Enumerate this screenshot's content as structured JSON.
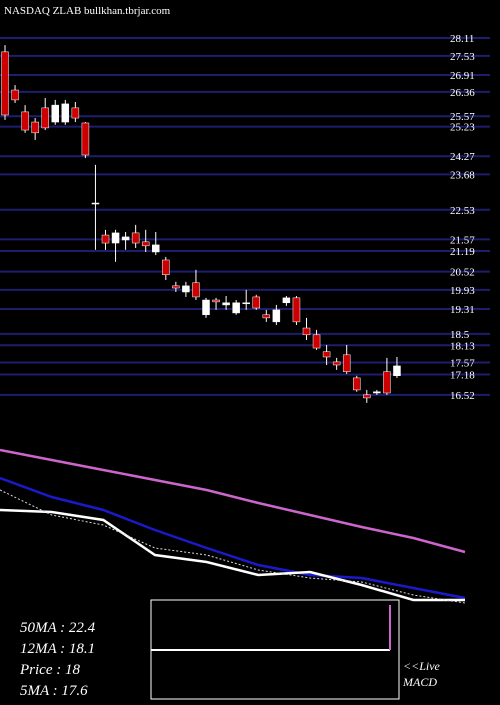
{
  "chart_data": [
    {
      "type": "candlestick",
      "title": "NASDAQ ZLAB bullkhan.tbrjar.com",
      "ylim": [
        16.19,
        28.11
      ],
      "yticks": [
        28.11,
        27.53,
        26.91,
        26.36,
        25.57,
        25.23,
        24.27,
        23.68,
        22.53,
        21.57,
        21.19,
        20.52,
        19.93,
        19.31,
        18.5,
        18.13,
        17.57,
        17.18,
        16.52
      ],
      "grid": true,
      "grid_color": "#1e1e6e",
      "up_color": "#ffffff",
      "down_color": "#cc0000",
      "open": [
        27.66,
        26.42,
        25.71,
        25.38,
        25.84,
        25.38,
        25.38,
        25.84,
        25.35,
        22.75,
        21.71,
        21.45,
        21.55,
        21.78,
        21.49,
        21.16,
        20.9,
        20.06,
        19.86,
        20.16,
        19.12,
        19.6,
        19.44,
        19.18,
        19.51,
        19.7,
        19.12,
        18.89,
        19.51,
        19.67,
        18.69,
        18.47,
        17.92,
        17.59,
        17.82,
        17.07,
        16.52,
        16.58,
        17.27,
        17.14
      ],
      "high": [
        27.88,
        26.58,
        25.93,
        25.51,
        26.16,
        26.1,
        26.1,
        26.03,
        25.38,
        23.99,
        21.88,
        21.88,
        21.81,
        22.04,
        21.88,
        21.81,
        21.0,
        20.19,
        20.19,
        20.58,
        19.67,
        19.67,
        19.73,
        19.6,
        19.93,
        19.77,
        19.28,
        19.44,
        19.73,
        19.73,
        19.02,
        18.63,
        18.14,
        17.72,
        18.14,
        17.14,
        16.68,
        16.68,
        17.72,
        17.75
      ],
      "low": [
        25.45,
        26.0,
        25.03,
        24.8,
        25.12,
        25.29,
        25.29,
        25.38,
        24.21,
        21.23,
        21.23,
        20.84,
        21.23,
        21.29,
        21.16,
        21.06,
        20.25,
        19.86,
        19.7,
        19.6,
        19.02,
        19.28,
        19.28,
        19.12,
        19.28,
        19.28,
        18.89,
        18.79,
        19.41,
        18.79,
        18.3,
        17.98,
        17.49,
        17.33,
        17.2,
        16.62,
        16.26,
        16.52,
        16.52,
        17.07
      ],
      "close": [
        25.61,
        26.1,
        25.12,
        25.03,
        25.19,
        25.93,
        25.97,
        25.51,
        24.31,
        22.75,
        21.45,
        21.78,
        21.65,
        21.45,
        21.36,
        21.39,
        20.42,
        19.99,
        20.06,
        19.7,
        19.6,
        19.54,
        19.51,
        19.51,
        19.51,
        19.34,
        19.02,
        19.28,
        19.67,
        18.89,
        18.47,
        18.04,
        17.75,
        17.49,
        17.27,
        16.68,
        16.42,
        16.62,
        16.58,
        17.46
      ]
    },
    {
      "type": "line",
      "ylim": [
        16,
        30
      ],
      "series": [
        {
          "name": "50MA",
          "color": "#cc66cc",
          "values": [
            29.6,
            28.8,
            28.0,
            27.2,
            26.4,
            25.36,
            24.4,
            23.44,
            22.56,
            21.44
          ]
        },
        {
          "name": "12MA",
          "color": "#1a1acc",
          "values": [
            27.36,
            25.84,
            24.8,
            23.2,
            21.76,
            20.4,
            19.6,
            19.36,
            18.56,
            17.76
          ]
        },
        {
          "name": "Price",
          "color": "#ffffff",
          "values": [
            24.8,
            24.64,
            24.0,
            21.2,
            20.64,
            19.6,
            19.84,
            18.8,
            17.6,
            17.6
          ]
        },
        {
          "name": "5MA",
          "color": "#dddddd",
          "dashed": true,
          "values": [
            26.4,
            24.4,
            23.6,
            21.76,
            21.2,
            20.0,
            19.36,
            19.04,
            18.0,
            17.36
          ]
        }
      ],
      "annotations": [
        "50MA : 22.4",
        "12MA : 18.1",
        "Price   : 18",
        "5MA : 17.6"
      ],
      "macd_label": [
        "<<Live",
        "MACD"
      ]
    }
  ]
}
